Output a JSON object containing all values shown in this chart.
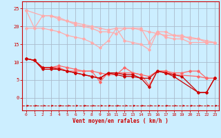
{
  "bg_color": "#cceeff",
  "grid_color": "#aabbcc",
  "line_color_dark": "#cc0000",
  "xlabel": "Vent moyen/en rafales ( km/h )",
  "xlabel_color": "#cc0000",
  "xlim": [
    -0.5,
    23.5
  ],
  "ylim": [
    -3.5,
    27
  ],
  "yticks": [
    0,
    5,
    10,
    15,
    20,
    25
  ],
  "xticks": [
    0,
    1,
    2,
    3,
    4,
    5,
    6,
    7,
    8,
    9,
    10,
    11,
    12,
    13,
    14,
    15,
    16,
    17,
    18,
    19,
    20,
    21,
    22,
    23
  ],
  "series": [
    {
      "x": [
        0,
        1,
        2,
        3,
        4,
        5,
        6,
        7,
        8,
        9,
        10,
        11,
        12,
        13,
        14,
        15,
        16,
        17,
        18,
        19,
        20,
        21,
        22,
        23
      ],
      "y": [
        24.5,
        19.5,
        23.0,
        23.0,
        22.5,
        21.5,
        21.0,
        20.5,
        20.0,
        19.5,
        19.0,
        19.5,
        19.5,
        19.5,
        19.5,
        15.5,
        18.5,
        18.5,
        17.5,
        17.5,
        16.5,
        16.5,
        15.5,
        15.5
      ],
      "color": "#ffaaaa",
      "lw": 0.9,
      "marker": "D",
      "ms": 1.8
    },
    {
      "x": [
        0,
        2,
        3,
        4,
        5,
        6,
        7,
        8,
        9,
        10,
        11,
        12,
        13,
        14,
        15,
        16,
        17,
        18,
        19,
        20,
        21,
        22,
        23
      ],
      "y": [
        24.5,
        23.0,
        23.0,
        22.0,
        21.5,
        20.5,
        20.0,
        19.5,
        18.5,
        18.5,
        18.0,
        19.5,
        19.5,
        19.0,
        18.5,
        18.0,
        17.5,
        17.5,
        17.0,
        17.0,
        16.5,
        16.0,
        15.5
      ],
      "color": "#ffaaaa",
      "lw": 0.9,
      "marker": "D",
      "ms": 1.8
    },
    {
      "x": [
        0,
        2,
        3,
        4,
        5,
        6,
        7,
        8,
        9,
        10,
        11,
        12,
        13,
        14,
        15,
        16,
        17,
        18,
        19,
        20,
        22,
        23
      ],
      "y": [
        19.5,
        19.5,
        19.0,
        18.5,
        17.5,
        17.0,
        16.5,
        15.5,
        14.0,
        16.0,
        19.5,
        16.0,
        15.5,
        15.0,
        13.5,
        18.5,
        17.0,
        16.5,
        16.5,
        15.5,
        15.5,
        15.5
      ],
      "color": "#ffaaaa",
      "lw": 0.9,
      "marker": "D",
      "ms": 1.8
    },
    {
      "x": [
        0,
        1,
        2,
        3,
        4,
        5,
        6,
        7,
        8,
        9,
        10,
        11,
        12,
        13,
        14,
        15,
        16,
        17,
        18,
        19,
        20,
        21,
        22,
        23
      ],
      "y": [
        11.0,
        10.5,
        8.5,
        8.5,
        8.5,
        7.5,
        7.5,
        7.5,
        7.5,
        7.0,
        6.5,
        6.5,
        8.5,
        7.0,
        6.5,
        6.0,
        7.5,
        7.5,
        7.0,
        7.0,
        7.5,
        7.5,
        5.5,
        5.5
      ],
      "color": "#ff6666",
      "lw": 0.9,
      "marker": "D",
      "ms": 1.8
    },
    {
      "x": [
        0,
        1,
        2,
        3,
        4,
        5,
        6,
        7,
        8,
        9,
        10,
        11,
        12,
        13,
        14,
        15,
        16,
        17,
        18,
        21,
        22,
        23
      ],
      "y": [
        11.0,
        10.5,
        8.5,
        8.5,
        9.0,
        8.5,
        8.0,
        7.5,
        7.5,
        4.5,
        7.0,
        7.0,
        7.0,
        7.0,
        6.5,
        3.5,
        7.5,
        7.5,
        6.5,
        6.0,
        5.5,
        5.5
      ],
      "color": "#ff6666",
      "lw": 0.9,
      "marker": "D",
      "ms": 1.8
    },
    {
      "x": [
        0,
        1,
        2,
        3,
        4,
        5,
        6,
        7,
        8,
        9,
        10,
        11,
        12,
        13,
        14,
        15,
        16,
        17,
        18,
        19,
        21,
        22,
        23
      ],
      "y": [
        11.0,
        10.5,
        8.5,
        8.5,
        8.0,
        7.5,
        7.0,
        6.5,
        6.0,
        5.5,
        7.0,
        7.0,
        6.5,
        6.5,
        5.5,
        5.5,
        7.5,
        7.0,
        6.5,
        6.0,
        1.5,
        1.5,
        5.5
      ],
      "color": "#cc0000",
      "lw": 0.9,
      "marker": "D",
      "ms": 1.8
    },
    {
      "x": [
        0,
        1,
        2,
        3,
        4,
        5,
        6,
        7,
        8,
        9,
        10,
        11,
        12,
        13,
        14,
        15,
        16,
        17,
        18,
        21,
        22,
        23
      ],
      "y": [
        11.0,
        10.5,
        8.0,
        8.0,
        8.0,
        7.5,
        7.0,
        6.5,
        6.0,
        5.5,
        7.0,
        6.5,
        6.0,
        6.0,
        5.5,
        3.0,
        7.5,
        7.0,
        6.0,
        1.5,
        1.5,
        5.5
      ],
      "color": "#cc0000",
      "lw": 0.9,
      "marker": "D",
      "ms": 1.8
    }
  ]
}
